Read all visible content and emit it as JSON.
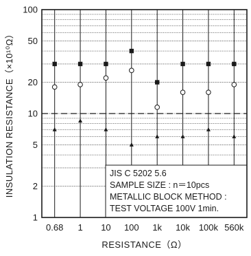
{
  "chart_data": {
    "type": "scatter",
    "xlabel": "RESISTANCE（Ω）",
    "ylabel": "INSULATION RESISTANCE（×10¹⁰Ω）",
    "y_scale": "log",
    "ylim": [
      1,
      100
    ],
    "y_ticks": [
      "1",
      "2",
      "5",
      "10",
      "20",
      "50",
      "100"
    ],
    "categories": [
      "0.68",
      "1",
      "10",
      "100",
      "1k",
      "10k",
      "100k",
      "560k"
    ],
    "series": [
      {
        "marker": "square",
        "values": [
          30,
          30,
          30,
          40,
          20,
          30,
          30,
          30
        ]
      },
      {
        "marker": "circle",
        "values": [
          18,
          19,
          22,
          26,
          11.5,
          16,
          16,
          19
        ]
      },
      {
        "marker": "triangle",
        "values": [
          7,
          8.5,
          7,
          5,
          6,
          6,
          7,
          6
        ]
      }
    ],
    "reference_line": {
      "y": 10,
      "style": "dashed"
    },
    "annotation": [
      "JIS C 5202 5.6",
      "SAMPLE SIZE : n＝10pcs",
      "METALLIC BLOCK METHOD :",
      "TEST VOLTAGE 100V 1min."
    ],
    "grid": true,
    "colors": {
      "line": "#1a1a1a",
      "grid": "#555555",
      "background": "#ffffff"
    }
  }
}
